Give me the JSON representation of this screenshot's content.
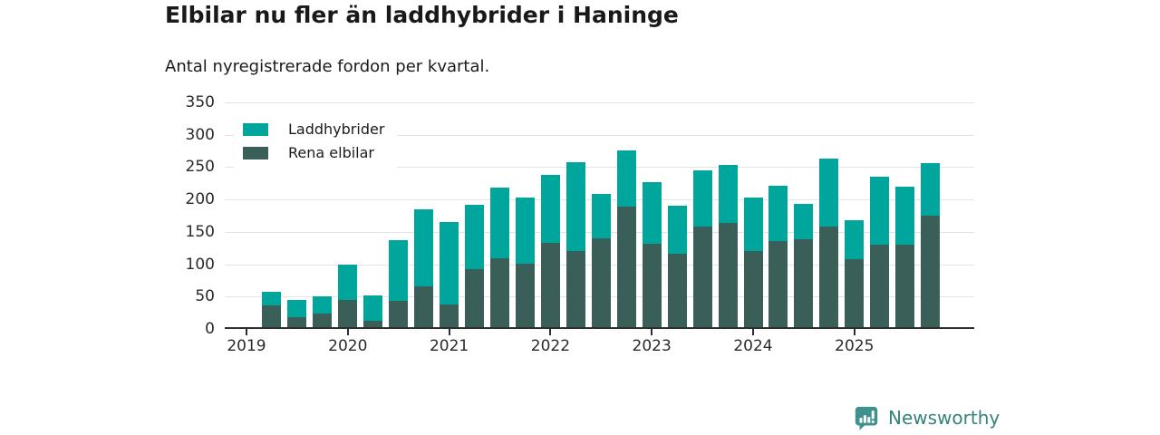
{
  "header": {
    "title": "Elbilar nu fler än laddhybrider i Haninge",
    "subtitle": "Antal nyregistrerade fordon per kvartal."
  },
  "footer": {
    "brand": "Newsworthy"
  },
  "colors": {
    "laddhybrider": "#00a69b",
    "rena_elbilar": "#3a5e58",
    "grid": "#e3e3e3",
    "axis": "#2e2e2e",
    "logo_icon": "#3e918c",
    "logo_text": "#35827e"
  },
  "chart_data": {
    "type": "bar",
    "stacked": true,
    "title": "Elbilar nu fler än laddhybrider i Haninge",
    "subtitle": "Antal nyregistrerade fordon per kvartal.",
    "xlabel": "",
    "ylabel": "",
    "ylim": [
      0,
      350
    ],
    "yticks": [
      0,
      50,
      100,
      150,
      200,
      250,
      300,
      350
    ],
    "year_ticks": [
      2019,
      2020,
      2021,
      2022,
      2023,
      2024,
      2025
    ],
    "grid": true,
    "legend_position": "top-left",
    "categories": [
      "2019-Q2",
      "2019-Q3",
      "2019-Q4",
      "2020-Q1",
      "2020-Q2",
      "2020-Q3",
      "2020-Q4",
      "2021-Q1",
      "2021-Q2",
      "2021-Q3",
      "2021-Q4",
      "2022-Q1",
      "2022-Q2",
      "2022-Q3",
      "2022-Q4",
      "2023-Q1",
      "2023-Q2",
      "2023-Q3",
      "2023-Q4",
      "2024-Q1",
      "2024-Q2",
      "2024-Q3",
      "2024-Q4",
      "2025-Q1",
      "2025-Q2",
      "2025-Q3",
      "2025-Q4"
    ],
    "series": [
      {
        "name": "Laddhybrider",
        "color": "#00a69b",
        "values": [
          22,
          27,
          26,
          55,
          39,
          95,
          119,
          127,
          100,
          109,
          102,
          105,
          138,
          69,
          87,
          95,
          74,
          86,
          89,
          83,
          85,
          54,
          106,
          60,
          105,
          90,
          82
        ]
      },
      {
        "name": "Rena elbilar",
        "color": "#3a5e58",
        "values": [
          33,
          15,
          21,
          42,
          10,
          40,
          63,
          35,
          89,
          107,
          98,
          130,
          117,
          137,
          186,
          129,
          114,
          156,
          161,
          117,
          133,
          136,
          155,
          105,
          128,
          127,
          172
        ]
      }
    ],
    "totals": [
      55,
      42,
      47,
      97,
      49,
      135,
      182,
      162,
      189,
      216,
      200,
      235,
      255,
      206,
      273,
      224,
      188,
      242,
      250,
      200,
      218,
      190,
      261,
      165,
      233,
      217,
      254
    ]
  }
}
